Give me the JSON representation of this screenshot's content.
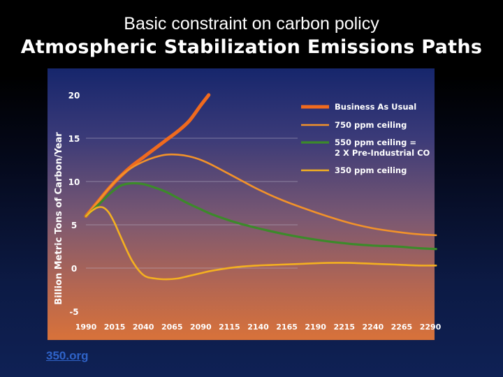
{
  "slide": {
    "title": "Basic constraint on carbon policy",
    "source": "350.org"
  },
  "colors": {
    "bau": "#f06a1e",
    "ppm750": "#f2922a",
    "ppm550": "#3c8a2a",
    "ppm350": "#f4b020",
    "text": "#ffffff",
    "grid": "#b9b4c8",
    "link": "#2f63c8"
  },
  "chart_data": {
    "type": "line",
    "title": "Atmospheric Stabilization Emissions Paths",
    "xlabel": "",
    "ylabel": "Billion Metric Tons of Carbon/Year",
    "xlim": [
      1990,
      2290
    ],
    "ylim": [
      -5,
      20
    ],
    "x_ticks": [
      1990,
      2015,
      2040,
      2065,
      2090,
      2115,
      2140,
      2165,
      2190,
      2215,
      2240,
      2265,
      2290
    ],
    "y_ticks": [
      20,
      15,
      10,
      5,
      0,
      -5
    ],
    "gridlines": [
      15,
      10,
      5,
      0
    ],
    "legend_position": "top-right",
    "series": [
      {
        "name": "Business As Usual",
        "legend": [
          "Business As Usual"
        ],
        "color": "#f06a1e",
        "x": [
          1990,
          2000,
          2010,
          2020,
          2030,
          2040,
          2050,
          2060,
          2070,
          2080,
          2090,
          2097
        ],
        "y": [
          6.0,
          7.6,
          9.2,
          10.6,
          11.8,
          12.8,
          13.8,
          14.8,
          15.8,
          17.0,
          18.8,
          20.0
        ]
      },
      {
        "name": "750 ppm ceiling",
        "legend": [
          "750 ppm ceiling"
        ],
        "color": "#f2922a",
        "x": [
          1990,
          2000,
          2010,
          2020,
          2030,
          2040,
          2050,
          2060,
          2070,
          2080,
          2090,
          2100,
          2120,
          2140,
          2160,
          2180,
          2200,
          2220,
          2240,
          2260,
          2280,
          2295
        ],
        "y": [
          6.0,
          7.6,
          9.2,
          10.6,
          11.6,
          12.3,
          12.8,
          13.1,
          13.1,
          12.9,
          12.5,
          11.9,
          10.5,
          9.1,
          7.9,
          6.9,
          6.0,
          5.2,
          4.6,
          4.2,
          3.9,
          3.8
        ]
      },
      {
        "name": "550 ppm ceiling = 2 X Pre-Industrial CO",
        "legend": [
          "550 ppm ceiling =",
          "2 X Pre-Industrial CO"
        ],
        "color": "#3c8a2a",
        "x": [
          1990,
          2000,
          2010,
          2020,
          2030,
          2040,
          2050,
          2060,
          2070,
          2080,
          2090,
          2100,
          2120,
          2140,
          2160,
          2180,
          2200,
          2220,
          2240,
          2260,
          2280,
          2295
        ],
        "y": [
          6.0,
          7.2,
          8.5,
          9.5,
          9.8,
          9.7,
          9.3,
          8.8,
          8.1,
          7.4,
          6.8,
          6.2,
          5.3,
          4.6,
          4.0,
          3.5,
          3.1,
          2.8,
          2.6,
          2.5,
          2.3,
          2.2
        ]
      },
      {
        "name": "350 ppm ceiling",
        "legend": [
          "350 ppm ceiling"
        ],
        "color": "#f4b020",
        "x": [
          1990,
          1995,
          2000,
          2005,
          2010,
          2015,
          2020,
          2030,
          2040,
          2050,
          2060,
          2070,
          2080,
          2090,
          2100,
          2120,
          2140,
          2160,
          2180,
          2200,
          2220,
          2240,
          2260,
          2280,
          2295
        ],
        "y": [
          6.0,
          6.6,
          7.0,
          7.0,
          6.4,
          5.2,
          3.7,
          0.9,
          -0.8,
          -1.2,
          -1.3,
          -1.2,
          -0.9,
          -0.6,
          -0.3,
          0.1,
          0.3,
          0.4,
          0.5,
          0.6,
          0.6,
          0.5,
          0.4,
          0.3,
          0.3
        ]
      }
    ]
  }
}
